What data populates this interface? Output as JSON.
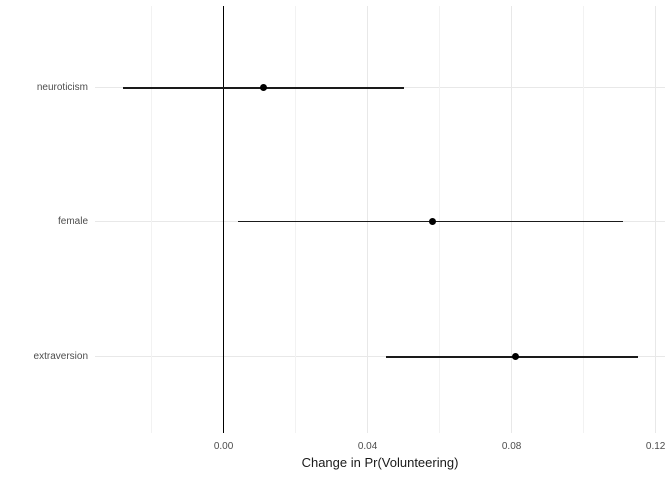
{
  "chart_data": {
    "type": "scatter",
    "subtype": "coefficient-dot-whisker-plot",
    "orientation": "horizontal",
    "title": "",
    "xlabel": "Change in Pr(Volunteering)",
    "ylabel": "",
    "categories": [
      "neuroticism",
      "female",
      "extraversion"
    ],
    "series": [
      {
        "name": "estimate",
        "values": [
          0.011,
          0.058,
          0.081
        ]
      },
      {
        "name": "ci_lower",
        "values": [
          -0.028,
          0.004,
          0.045
        ]
      },
      {
        "name": "ci_upper",
        "values": [
          0.05,
          0.111,
          0.115
        ]
      }
    ],
    "reference_line_x": 0,
    "xlim": [
      -0.0357,
      0.1226
    ],
    "x_ticks": [
      {
        "value": 0.0,
        "label": "0.00"
      },
      {
        "value": 0.04,
        "label": "0.04"
      },
      {
        "value": 0.08,
        "label": "0.08"
      },
      {
        "value": 0.12,
        "label": "0.12"
      }
    ],
    "x_minor_gridlines": [
      -0.02,
      0.02,
      0.06,
      0.1
    ],
    "grid": true,
    "legend": false,
    "colors": {
      "point": "#000000",
      "errorbar": "#1a1a1a",
      "reference_line": "#000000",
      "grid_major": "#e8e8e8",
      "grid_minor": "#f2f2f2",
      "axis_text": "#4d4d4d",
      "axis_title": "#1a1a1a",
      "background": "#ffffff"
    }
  }
}
